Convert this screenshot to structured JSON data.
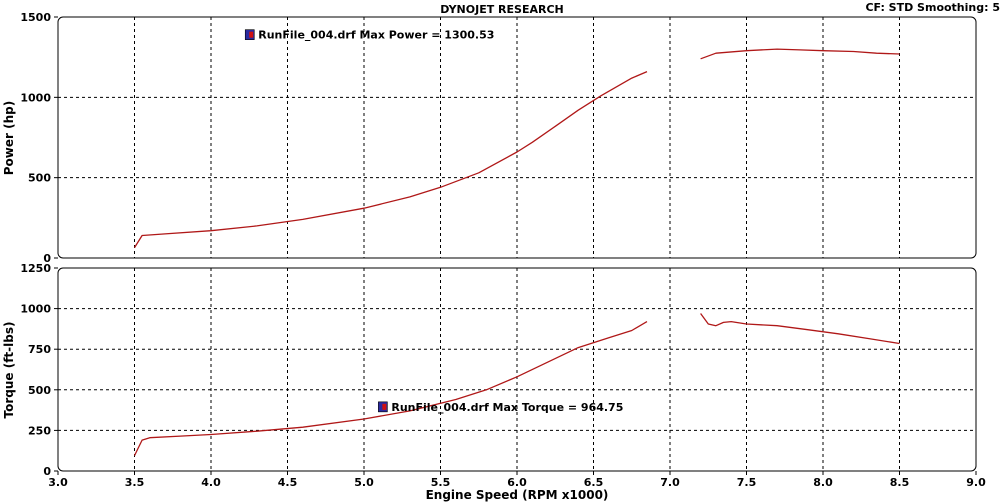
{
  "header": {
    "title": "DYNOJET RESEARCH",
    "settings": "CF: STD  Smoothing: 5"
  },
  "colors": {
    "curve": "#b01818",
    "frame": "#000000",
    "grid": "#000000",
    "marker_fill": "#2a2aa0",
    "marker_accent": "#d01010"
  },
  "chart_data": {
    "type": "line",
    "x_label": "Engine Speed (RPM x1000)",
    "x_ticks": [
      "3.0",
      "3.5",
      "4.0",
      "4.5",
      "5.0",
      "5.5",
      "6.0",
      "6.5",
      "7.0",
      "7.5",
      "8.0",
      "8.5",
      "9.0"
    ],
    "xlim": [
      3.0,
      9.0
    ],
    "grid": true,
    "panels": [
      {
        "name": "power",
        "y_label": "Power (hp)",
        "ylim": [
          0,
          1500
        ],
        "y_ticks": [
          "0",
          "500",
          "1000",
          "1500"
        ],
        "annotation": {
          "text": "RunFile_004.drf Max Power = 1300.53",
          "x": 4.25,
          "y": 1390
        },
        "segments": [
          [
            [
              3.5,
              65
            ],
            [
              3.55,
              140
            ],
            [
              3.7,
              150
            ],
            [
              4.0,
              170
            ],
            [
              4.3,
              200
            ],
            [
              4.6,
              240
            ],
            [
              5.0,
              310
            ],
            [
              5.3,
              380
            ],
            [
              5.5,
              440
            ],
            [
              5.75,
              530
            ],
            [
              6.0,
              660
            ],
            [
              6.1,
              720
            ],
            [
              6.25,
              820
            ],
            [
              6.4,
              920
            ],
            [
              6.55,
              1010
            ],
            [
              6.75,
              1120
            ],
            [
              6.85,
              1160
            ]
          ],
          [
            [
              7.2,
              1240
            ],
            [
              7.3,
              1275
            ],
            [
              7.5,
              1290
            ],
            [
              7.7,
              1300
            ],
            [
              7.85,
              1295
            ],
            [
              8.0,
              1290
            ],
            [
              8.2,
              1285
            ],
            [
              8.35,
              1275
            ],
            [
              8.5,
              1270
            ]
          ]
        ]
      },
      {
        "name": "torque",
        "y_label": "Torque (ft-lbs)",
        "ylim": [
          0,
          1250
        ],
        "y_ticks": [
          "0",
          "250",
          "500",
          "750",
          "1000",
          "1250"
        ],
        "annotation": {
          "text": "RunFile_004.drf Max Torque = 964.75",
          "x": 5.12,
          "y": 395
        },
        "segments": [
          [
            [
              3.5,
              95
            ],
            [
              3.55,
              190
            ],
            [
              3.6,
              205
            ],
            [
              3.8,
              215
            ],
            [
              4.0,
              225
            ],
            [
              4.3,
              245
            ],
            [
              4.6,
              270
            ],
            [
              5.0,
              320
            ],
            [
              5.3,
              370
            ],
            [
              5.6,
              440
            ],
            [
              5.8,
              500
            ],
            [
              6.0,
              580
            ],
            [
              6.2,
              670
            ],
            [
              6.4,
              760
            ],
            [
              6.6,
              820
            ],
            [
              6.75,
              865
            ],
            [
              6.85,
              920
            ]
          ],
          [
            [
              7.2,
              970
            ],
            [
              7.25,
              905
            ],
            [
              7.3,
              895
            ],
            [
              7.35,
              915
            ],
            [
              7.4,
              920
            ],
            [
              7.5,
              905
            ],
            [
              7.7,
              895
            ],
            [
              7.9,
              870
            ],
            [
              8.1,
              845
            ],
            [
              8.3,
              815
            ],
            [
              8.5,
              785
            ]
          ]
        ]
      }
    ]
  }
}
